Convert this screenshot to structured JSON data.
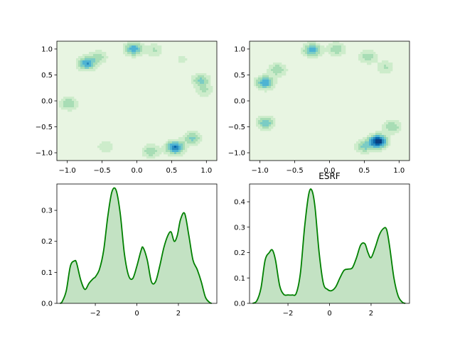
{
  "chart_data": [
    {
      "type": "contour",
      "panel": "top-left",
      "title": "",
      "xlim": [
        -1.15,
        1.15
      ],
      "ylim": [
        -1.15,
        1.15
      ],
      "xticks": [
        -1.0,
        -0.5,
        0.0,
        0.5,
        1.0
      ],
      "yticks": [
        -1.0,
        -0.5,
        0.0,
        0.5,
        1.0
      ],
      "xtick_labels": [
        "−1.0",
        "−0.5",
        "0.0",
        "0.5",
        "1.0"
      ],
      "ytick_labels": [
        "−1.0",
        "−0.5",
        "0.0",
        "0.5",
        "1.0"
      ],
      "colormap": "GnBu",
      "background_color": "#e8f5e2",
      "blobs": [
        {
          "x": 0.55,
          "y": -0.9,
          "weight": 1.0
        },
        {
          "x": 0.2,
          "y": -0.97,
          "weight": 0.45
        },
        {
          "x": 0.8,
          "y": -0.72,
          "weight": 0.5
        },
        {
          "x": -0.72,
          "y": 0.72,
          "weight": 0.8
        },
        {
          "x": -0.55,
          "y": 0.85,
          "weight": 0.35
        },
        {
          "x": -0.05,
          "y": 1.0,
          "weight": 0.75
        },
        {
          "x": 0.25,
          "y": 0.98,
          "weight": 0.3
        },
        {
          "x": 0.92,
          "y": 0.4,
          "weight": 0.5
        },
        {
          "x": 0.97,
          "y": 0.2,
          "weight": 0.3
        },
        {
          "x": -0.98,
          "y": -0.05,
          "weight": 0.45
        },
        {
          "x": -0.45,
          "y": -0.88,
          "weight": 0.25
        },
        {
          "x": 0.65,
          "y": 0.8,
          "weight": 0.15
        }
      ]
    },
    {
      "type": "contour",
      "panel": "top-right",
      "title": "",
      "xlim": [
        -1.15,
        1.15
      ],
      "ylim": [
        -1.15,
        1.15
      ],
      "xticks": [
        -1.0,
        -0.5,
        0.0,
        0.5,
        1.0
      ],
      "yticks": [
        -1.0,
        -0.5,
        0.0,
        0.5,
        1.0
      ],
      "xtick_labels": [
        "−1.0",
        "−0.5",
        "0.0",
        "0.5",
        "1.0"
      ],
      "ytick_labels": [
        "−1.0",
        "−0.5",
        "0.0",
        "0.5",
        "1.0"
      ],
      "colormap": "GnBu",
      "background_color": "#e8f5e2",
      "blobs": [
        {
          "x": 0.7,
          "y": -0.78,
          "weight": 1.35
        },
        {
          "x": 0.5,
          "y": -0.88,
          "weight": 0.5
        },
        {
          "x": 0.9,
          "y": -0.5,
          "weight": 0.45
        },
        {
          "x": -0.93,
          "y": 0.35,
          "weight": 0.8
        },
        {
          "x": -0.75,
          "y": 0.6,
          "weight": 0.45
        },
        {
          "x": -0.25,
          "y": 0.98,
          "weight": 0.75
        },
        {
          "x": 0.1,
          "y": 1.0,
          "weight": 0.45
        },
        {
          "x": 0.55,
          "y": 0.85,
          "weight": 0.4
        },
        {
          "x": 0.8,
          "y": 0.65,
          "weight": 0.3
        },
        {
          "x": -0.92,
          "y": -0.42,
          "weight": 0.6
        }
      ]
    },
    {
      "type": "area",
      "panel": "bottom-left",
      "title": "",
      "xlim": [
        -3.85,
        3.85
      ],
      "ylim": [
        0,
        0.385
      ],
      "xticks": [
        -2,
        0,
        2
      ],
      "yticks": [
        0.0,
        0.1,
        0.2,
        0.3
      ],
      "xtick_labels": [
        "−2",
        "0",
        "2"
      ],
      "ytick_labels": [
        "0.0",
        "0.1",
        "0.2",
        "0.3"
      ],
      "line_color": "#008000",
      "fill_color": "#c3e2c3",
      "x": [
        -3.7,
        -3.6,
        -3.4,
        -3.2,
        -3.0,
        -2.9,
        -2.7,
        -2.5,
        -2.3,
        -2.1,
        -2.0,
        -1.8,
        -1.6,
        -1.4,
        -1.2,
        -1.0,
        -0.8,
        -0.6,
        -0.4,
        -0.2,
        0.0,
        0.2,
        0.3,
        0.5,
        0.7,
        0.9,
        1.1,
        1.3,
        1.5,
        1.65,
        1.8,
        1.95,
        2.1,
        2.3,
        2.5,
        2.7,
        2.9,
        3.1,
        3.3,
        3.5,
        3.6
      ],
      "y": [
        0.0,
        0.005,
        0.04,
        0.12,
        0.137,
        0.13,
        0.075,
        0.045,
        0.065,
        0.08,
        0.085,
        0.11,
        0.17,
        0.28,
        0.36,
        0.365,
        0.29,
        0.16,
        0.09,
        0.08,
        0.12,
        0.17,
        0.18,
        0.14,
        0.07,
        0.07,
        0.12,
        0.18,
        0.22,
        0.23,
        0.2,
        0.22,
        0.27,
        0.29,
        0.22,
        0.14,
        0.11,
        0.07,
        0.02,
        0.003,
        0.0
      ]
    },
    {
      "type": "area",
      "panel": "bottom-right",
      "title": "ESRF",
      "xlim": [
        -3.85,
        3.85
      ],
      "ylim": [
        0,
        0.47
      ],
      "xticks": [
        -2,
        0,
        2
      ],
      "yticks": [
        0.0,
        0.1,
        0.2,
        0.3,
        0.4
      ],
      "xtick_labels": [
        "−2",
        "0",
        "2"
      ],
      "ytick_labels": [
        "0.0",
        "0.1",
        "0.2",
        "0.3",
        "0.4"
      ],
      "line_color": "#008000",
      "fill_color": "#c3e2c3",
      "x": [
        -3.7,
        -3.5,
        -3.3,
        -3.1,
        -2.9,
        -2.75,
        -2.6,
        -2.4,
        -2.2,
        -2.0,
        -1.8,
        -1.6,
        -1.4,
        -1.2,
        -1.0,
        -0.85,
        -0.7,
        -0.5,
        -0.3,
        -0.1,
        0.1,
        0.3,
        0.5,
        0.7,
        0.9,
        1.1,
        1.3,
        1.5,
        1.7,
        1.85,
        2.0,
        2.2,
        2.4,
        2.6,
        2.75,
        2.9,
        3.1,
        3.3,
        3.5,
        3.65
      ],
      "y": [
        0.0,
        0.01,
        0.06,
        0.17,
        0.2,
        0.21,
        0.17,
        0.07,
        0.035,
        0.033,
        0.033,
        0.04,
        0.12,
        0.3,
        0.43,
        0.445,
        0.38,
        0.2,
        0.08,
        0.055,
        0.05,
        0.065,
        0.1,
        0.13,
        0.135,
        0.14,
        0.18,
        0.23,
        0.235,
        0.2,
        0.18,
        0.22,
        0.27,
        0.295,
        0.29,
        0.22,
        0.1,
        0.03,
        0.005,
        0.0
      ]
    }
  ]
}
